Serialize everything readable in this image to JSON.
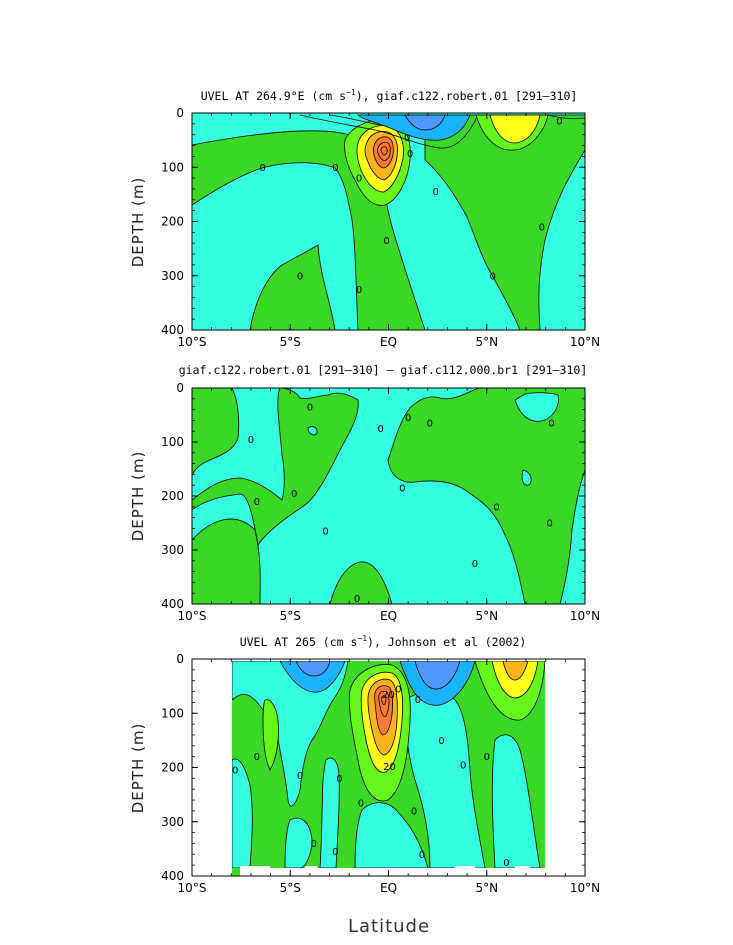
{
  "colors": {
    "cyan": "#33ffe0",
    "green": "#39d827",
    "light_green": "#66f71a",
    "yellow": "#ffff1a",
    "orange": "#ffb31a",
    "red_orange": "#ff7a33",
    "blue": "#1ab3ff",
    "deep_blue": "#4d99ff"
  },
  "xlabel": "Latitude",
  "chart_data": [
    {
      "type": "contour",
      "title_before_sup": "UVEL AT 264.9°E (cm s",
      "title_sup": "−1",
      "title_after_sup": "), giaf.c122.robert.01 [291–310]",
      "ylabel": "DEPTH (m)",
      "x_ticks": [
        "10°S",
        "5°S",
        "EQ",
        "5°N",
        "10°N"
      ],
      "y_ticks": [
        "0",
        "100",
        "200",
        "300",
        "400"
      ],
      "x_range": [
        -10,
        10
      ],
      "y_range": [
        0,
        400
      ],
      "contour_labels": [
        {
          "text": "0",
          "lat": -6.4,
          "depth": 100
        },
        {
          "text": "0",
          "lat": -2.7,
          "depth": 100
        },
        {
          "text": "0",
          "lat": -1.5,
          "depth": 120
        },
        {
          "text": "0",
          "lat": -4.5,
          "depth": 300
        },
        {
          "text": "0",
          "lat": -0.1,
          "depth": 235
        },
        {
          "text": "0",
          "lat": -1.5,
          "depth": 325
        },
        {
          "text": "0",
          "lat": 1.1,
          "depth": 75
        },
        {
          "text": "0",
          "lat": 2.4,
          "depth": 145
        },
        {
          "text": "0",
          "lat": 5.3,
          "depth": 300
        },
        {
          "text": "0",
          "lat": 7.8,
          "depth": 210
        },
        {
          "text": "0",
          "lat": 8.7,
          "depth": 15
        },
        {
          "text": "0",
          "lat": 0.95,
          "depth": 45
        }
      ]
    },
    {
      "type": "contour",
      "title": "giaf.c122.robert.01 [291–310] – giaf.c112.000.br1 [291–310]",
      "ylabel": "DEPTH (m)",
      "x_ticks": [
        "10°S",
        "5°S",
        "EQ",
        "5°N",
        "10°N"
      ],
      "y_ticks": [
        "0",
        "100",
        "200",
        "300",
        "400"
      ],
      "x_range": [
        -10,
        10
      ],
      "y_range": [
        0,
        400
      ],
      "contour_labels": [
        {
          "text": "0",
          "lat": -7.0,
          "depth": 95
        },
        {
          "text": "0",
          "lat": -6.7,
          "depth": 210
        },
        {
          "text": "0",
          "lat": -4.8,
          "depth": 195
        },
        {
          "text": "0",
          "lat": -4.0,
          "depth": 35
        },
        {
          "text": "0",
          "lat": -3.2,
          "depth": 265
        },
        {
          "text": "0",
          "lat": -1.6,
          "depth": 390
        },
        {
          "text": "0",
          "lat": -0.4,
          "depth": 75
        },
        {
          "text": "0",
          "lat": 1.0,
          "depth": 55
        },
        {
          "text": "0",
          "lat": 2.1,
          "depth": 65
        },
        {
          "text": "0",
          "lat": 0.7,
          "depth": 185
        },
        {
          "text": "0",
          "lat": 4.4,
          "depth": 325
        },
        {
          "text": "0",
          "lat": 5.5,
          "depth": 220
        },
        {
          "text": "0",
          "lat": 8.3,
          "depth": 65
        },
        {
          "text": "0",
          "lat": 8.2,
          "depth": 250
        }
      ]
    },
    {
      "type": "contour",
      "title_before_sup": "UVEL AT 265 (cm s",
      "title_sup": "−1",
      "title_after_sup": "), Johnson et al (2002)",
      "ylabel": "DEPTH (m)",
      "x_ticks": [
        "10°S",
        "5°S",
        "EQ",
        "5°N",
        "10°N"
      ],
      "y_ticks": [
        "0",
        "100",
        "200",
        "300",
        "400"
      ],
      "x_range": [
        -10,
        10
      ],
      "y_range": [
        0,
        400
      ],
      "contour_labels": [
        {
          "text": "0",
          "lat": -7.8,
          "depth": 205
        },
        {
          "text": "0",
          "lat": -6.7,
          "depth": 180
        },
        {
          "text": "0",
          "lat": -4.5,
          "depth": 215
        },
        {
          "text": "0",
          "lat": -2.5,
          "depth": 220
        },
        {
          "text": "0",
          "lat": -1.4,
          "depth": 265
        },
        {
          "text": "0",
          "lat": -3.8,
          "depth": 340
        },
        {
          "text": "0",
          "lat": -2.7,
          "depth": 355
        },
        {
          "text": "0",
          "lat": 0.5,
          "depth": 55
        },
        {
          "text": "0",
          "lat": 1.5,
          "depth": 75
        },
        {
          "text": "0",
          "lat": 1.3,
          "depth": 280
        },
        {
          "text": "0",
          "lat": 2.7,
          "depth": 150
        },
        {
          "text": "0",
          "lat": 1.7,
          "depth": 360
        },
        {
          "text": "0",
          "lat": 3.8,
          "depth": 195
        },
        {
          "text": "0",
          "lat": 5.0,
          "depth": 180
        },
        {
          "text": "0",
          "lat": 6.0,
          "depth": 375
        },
        {
          "text": "20",
          "lat": 0.0,
          "depth": 65
        },
        {
          "text": "20",
          "lat": 0.05,
          "depth": 198
        }
      ]
    }
  ]
}
